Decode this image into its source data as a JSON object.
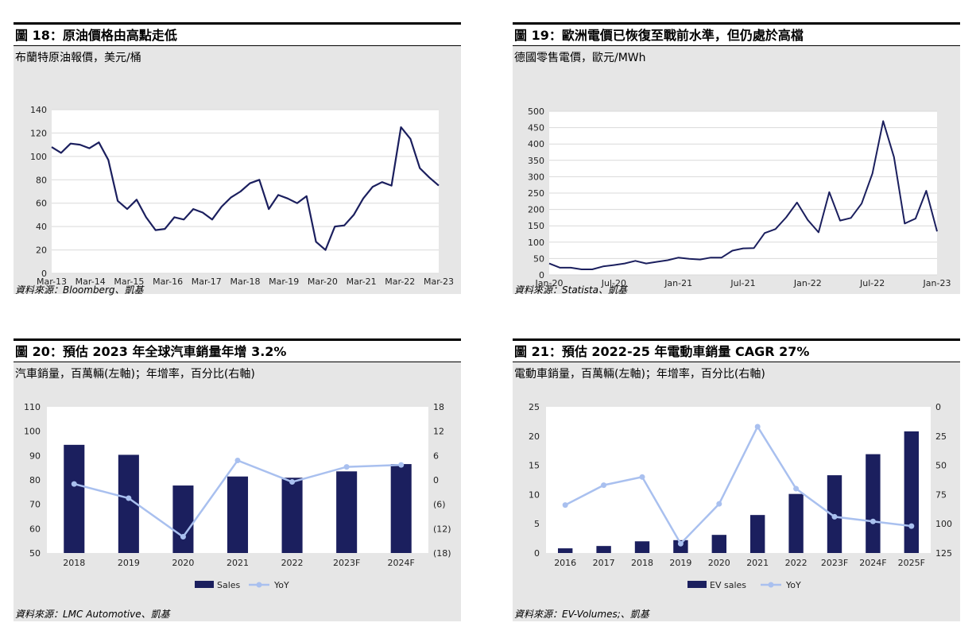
{
  "charts": [
    {
      "title": "圖 18：原油價格由高點走低",
      "subtitle": "布蘭特原油報價，美元/桶",
      "source": "資料來源：Bloomberg、凱基",
      "chart_data": {
        "type": "line",
        "ylim": [
          0,
          140
        ],
        "yticks": [
          "0",
          "20",
          "40",
          "60",
          "80",
          "100",
          "120",
          "140"
        ],
        "xticks": [
          "Mar-13",
          "Mar-14",
          "Mar-15",
          "Mar-16",
          "Mar-17",
          "Mar-18",
          "Mar-19",
          "Mar-20",
          "Mar-21",
          "Mar-22",
          "Mar-23"
        ],
        "x": [
          "Mar-13",
          "Jun-13",
          "Sep-13",
          "Dec-13",
          "Mar-14",
          "Jun-14",
          "Sep-14",
          "Dec-14",
          "Mar-15",
          "Jun-15",
          "Sep-15",
          "Dec-15",
          "Mar-16",
          "Jun-16",
          "Sep-16",
          "Dec-16",
          "Mar-17",
          "Jun-17",
          "Sep-17",
          "Dec-17",
          "Mar-18",
          "Jun-18",
          "Sep-18",
          "Dec-18",
          "Mar-19",
          "Jun-19",
          "Sep-19",
          "Dec-19",
          "Mar-20",
          "Apr-20",
          "Jun-20",
          "Sep-20",
          "Dec-20",
          "Mar-21",
          "Jun-21",
          "Sep-21",
          "Dec-21",
          "Mar-22",
          "Jun-22",
          "Sep-22",
          "Dec-22",
          "Mar-23"
        ],
        "values": [
          108,
          103,
          111,
          110,
          107,
          112,
          97,
          62,
          55,
          63,
          48,
          37,
          38,
          48,
          46,
          55,
          52,
          46,
          57,
          65,
          70,
          77,
          80,
          55,
          67,
          64,
          60,
          66,
          27,
          20,
          40,
          41,
          50,
          64,
          74,
          78,
          75,
          125,
          115,
          90,
          82,
          75
        ],
        "series_color": "#1b1f5e"
      }
    },
    {
      "title": "圖 19：歐洲電價已恢復至戰前水準，但仍處於高檔",
      "subtitle": "德國零售電價，歐元/MWh",
      "source": "資料來源：Statista、凱基",
      "chart_data": {
        "type": "line",
        "ylim": [
          0,
          500
        ],
        "yticks": [
          "0",
          "50",
          "100",
          "150",
          "200",
          "250",
          "300",
          "350",
          "400",
          "450",
          "500"
        ],
        "xticks": [
          "Jan-20",
          "Jul-20",
          "Jan-21",
          "Jul-21",
          "Jan-22",
          "Jul-22",
          "Jan-23"
        ],
        "x": [
          "Jan-20",
          "Feb-20",
          "Mar-20",
          "Apr-20",
          "May-20",
          "Jun-20",
          "Jul-20",
          "Aug-20",
          "Sep-20",
          "Oct-20",
          "Nov-20",
          "Dec-20",
          "Jan-21",
          "Feb-21",
          "Mar-21",
          "Apr-21",
          "May-21",
          "Jun-21",
          "Jul-21",
          "Aug-21",
          "Sep-21",
          "Oct-21",
          "Nov-21",
          "Dec-21",
          "Jan-22",
          "Feb-22",
          "Mar-22",
          "Apr-22",
          "May-22",
          "Jun-22",
          "Jul-22",
          "Aug-22",
          "Sep-22",
          "Oct-22",
          "Nov-22",
          "Dec-22",
          "Jan-23"
        ],
        "values": [
          35,
          22,
          22,
          17,
          17,
          26,
          30,
          35,
          43,
          35,
          40,
          45,
          53,
          49,
          47,
          53,
          53,
          74,
          81,
          82,
          128,
          140,
          176,
          221,
          168,
          130,
          253,
          166,
          174,
          218,
          310,
          470,
          360,
          157,
          172,
          257,
          133
        ],
        "series_color": "#1b1f5e"
      }
    },
    {
      "title": "圖 20：預估 2023 年全球汽車銷量年增 3.2%",
      "subtitle": "汽車銷量，百萬輛(左軸)；年增率，百分比(右軸)",
      "source": "資料來源：LMC Automotive、凱基",
      "chart_data": {
        "type": "bar",
        "categories": [
          "2018",
          "2019",
          "2020",
          "2021",
          "2022",
          "2023F",
          "2024F"
        ],
        "series": [
          {
            "name": "Sales",
            "values": [
              94.4,
              90.3,
              77.7,
              81.4,
              80.9,
              83.5,
              86.5
            ],
            "axis": "left",
            "color": "#1b1f5e"
          },
          {
            "name": "YoY",
            "values": [
              -1.0,
              -4.5,
              -14.0,
              4.8,
              -0.5,
              3.2,
              3.7
            ],
            "axis": "right",
            "color": "#a9c0ef"
          }
        ],
        "ylim_left": [
          50,
          110
        ],
        "yticks_left": [
          "50",
          "60",
          "70",
          "80",
          "90",
          "100",
          "110"
        ],
        "ylim_right": [
          -18,
          18
        ],
        "yticks_right": [
          "18",
          "12",
          "6",
          "0",
          "(6)",
          "(12)",
          "(18)"
        ],
        "legend": "bottom"
      }
    },
    {
      "title": "圖 21：預估 2022-25 年電動車銷量 CAGR 27%",
      "subtitle": "電動車銷量，百萬輛(左軸)；年增率，百分比(右軸)",
      "source": "資料來源：EV-Volumes;、凱基",
      "chart_data": {
        "type": "bar",
        "categories": [
          "2016",
          "2017",
          "2018",
          "2019",
          "2020",
          "2021",
          "2022",
          "2023F",
          "2024F",
          "2025F"
        ],
        "series": [
          {
            "name": "EV sales",
            "values": [
              0.8,
              1.2,
              2.0,
              2.2,
              3.1,
              6.5,
              10.1,
              13.3,
              16.9,
              20.8
            ],
            "axis": "left",
            "color": "#1b1f5e"
          },
          {
            "name": "YoY",
            "values": [
              41,
              58,
              65,
              8,
              42,
              108,
              55,
              31,
              27,
              23
            ],
            "axis": "right",
            "color": "#a9c0ef"
          }
        ],
        "ylim_left": [
          0,
          25
        ],
        "yticks_left": [
          "0",
          "5",
          "10",
          "15",
          "20",
          "25"
        ],
        "ylim_right": [
          0,
          125
        ],
        "yticks_right": [
          "0",
          "25",
          "50",
          "75",
          "100",
          "125"
        ],
        "legend": "bottom"
      }
    }
  ]
}
